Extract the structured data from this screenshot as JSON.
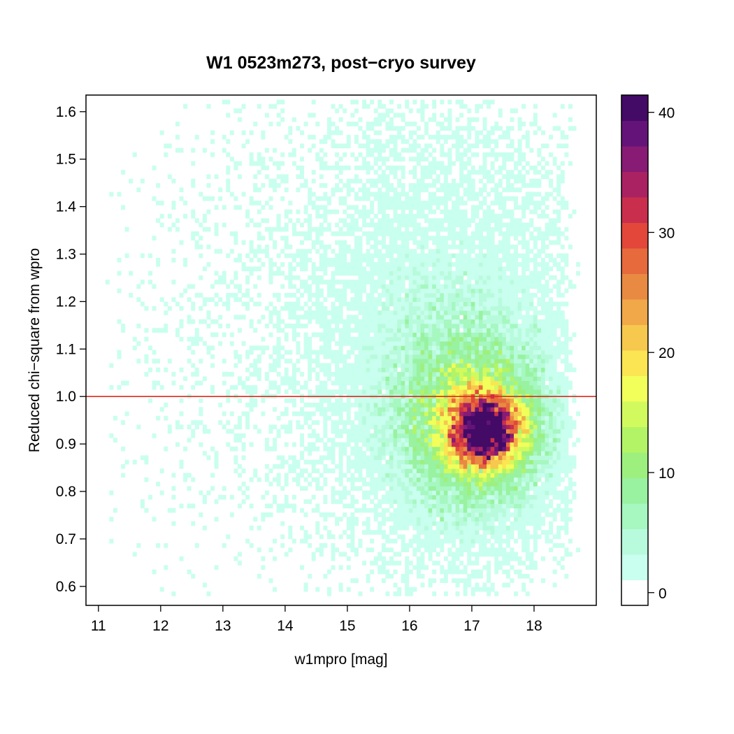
{
  "chart_data": {
    "type": "heatmap",
    "title": "W1 0523m273, post−cryo survey",
    "xlabel": "w1mpro [mag]",
    "ylabel": "Reduced chi−square from wpro",
    "xlim": [
      10.8,
      19.0
    ],
    "ylim": [
      0.56,
      1.635
    ],
    "x_ticks": [
      11,
      12,
      13,
      14,
      15,
      16,
      17,
      18
    ],
    "y_ticks": [
      0.6,
      0.7,
      0.8,
      0.9,
      1.0,
      1.1,
      1.2,
      1.3,
      1.4,
      1.5,
      1.6
    ],
    "y_tick_labels": [
      "0.6",
      "0.7",
      "0.8",
      "0.9",
      "1.0",
      "1.1",
      "1.2",
      "1.3",
      "1.4",
      "1.5",
      "1.6"
    ],
    "reference_line": {
      "y": 1.0,
      "color": "#e0291f"
    },
    "colorbar": {
      "min": 0,
      "max": 42.5,
      "ticks": [
        0,
        10,
        20,
        30,
        40
      ],
      "colors": [
        "#ffffff",
        "#c9ffee",
        "#b8fbdc",
        "#a6f7c0",
        "#98f2a0",
        "#9ef07e",
        "#b3f466",
        "#d1fa5e",
        "#f2ff5a",
        "#fbe552",
        "#f6c84e",
        "#f0a848",
        "#e88a42",
        "#e66a3c",
        "#e2473a",
        "#c92f4c",
        "#aa2262",
        "#881b74",
        "#641478",
        "#430a66"
      ]
    },
    "density_model": {
      "description": "binned 2D histogram of source counts (w1mpro vs reduced chi-square)",
      "bin_width_x": 0.0625,
      "bin_width_y": 0.00925,
      "core_center": {
        "x": 17.25,
        "y": 0.93
      },
      "peak_count": 42
    }
  }
}
